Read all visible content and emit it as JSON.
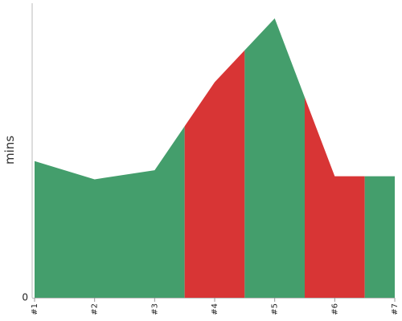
{
  "chart_data": {
    "type": "area",
    "title": "",
    "xlabel": "",
    "ylabel": "mins",
    "categories": [
      "#1",
      "#2",
      "#3",
      "#4",
      "#5",
      "#6",
      "#7"
    ],
    "values": [
      45,
      39,
      42,
      71,
      92,
      40,
      40
    ],
    "ylim": [
      0,
      97
    ],
    "y_ticks": [
      0
    ],
    "segment_boundaries": [
      0,
      2.5,
      3.5,
      4.5,
      5.5,
      6
    ],
    "segments": [
      {
        "from": 0,
        "to": 2.5,
        "status": "ok"
      },
      {
        "from": 2.5,
        "to": 3.5,
        "status": "over"
      },
      {
        "from": 3.5,
        "to": 4.5,
        "status": "ok"
      },
      {
        "from": 4.5,
        "to": 5.5,
        "status": "over"
      },
      {
        "from": 5.5,
        "to": 6,
        "status": "ok"
      }
    ],
    "colors": {
      "ok": "#449e6c",
      "over": "#d83535"
    },
    "grid": false,
    "legend": "none"
  }
}
